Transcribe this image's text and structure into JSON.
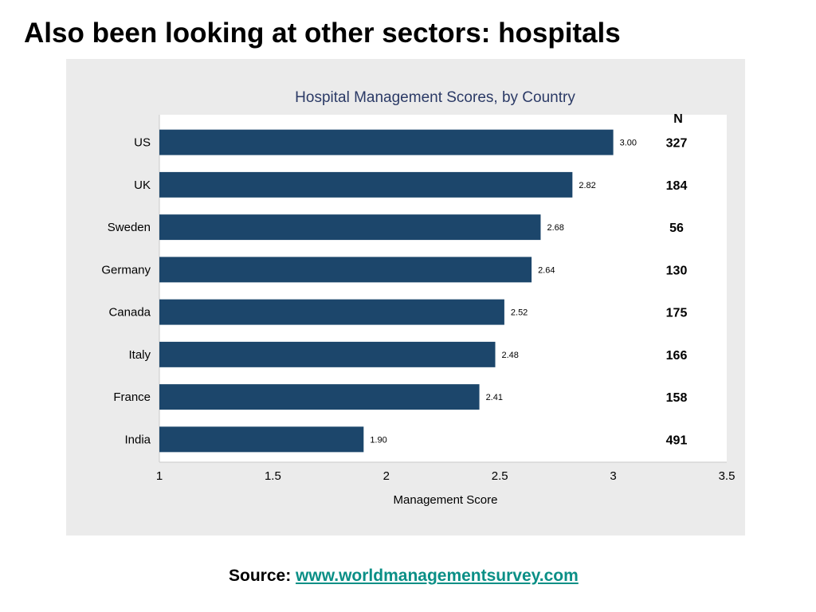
{
  "slide": {
    "title": "Also been looking at other sectors: hospitals",
    "source_label": "Source:",
    "source_link": "www.worldmanagementsurvey.com"
  },
  "colors": {
    "bar": "#1c466b",
    "title_text": "#2b3a66",
    "panel": "#ebebeb",
    "link": "#0a8f86"
  },
  "chart_data": {
    "type": "bar",
    "orientation": "horizontal",
    "title": "Hospital Management Scores, by Country",
    "xlabel": "Management Score",
    "ylabel": "",
    "xlim": [
      1,
      3.5
    ],
    "xticks": [
      1,
      1.5,
      2,
      2.5,
      3,
      3.5
    ],
    "xtick_labels": [
      "1",
      "1.5",
      "2",
      "2.5",
      "3",
      "3.5"
    ],
    "categories": [
      "US",
      "UK",
      "Sweden",
      "Germany",
      "Canada",
      "Italy",
      "France",
      "India"
    ],
    "values": [
      3.0,
      2.82,
      2.68,
      2.64,
      2.52,
      2.48,
      2.41,
      1.9
    ],
    "value_labels": [
      "3.00",
      "2.82",
      "2.68",
      "2.64",
      "2.52",
      "2.48",
      "2.41",
      "1.90"
    ],
    "n_header": "N",
    "n_values": [
      "327",
      "184",
      "56",
      "130",
      "175",
      "166",
      "158",
      "491"
    ],
    "grid": false,
    "legend": "none"
  }
}
